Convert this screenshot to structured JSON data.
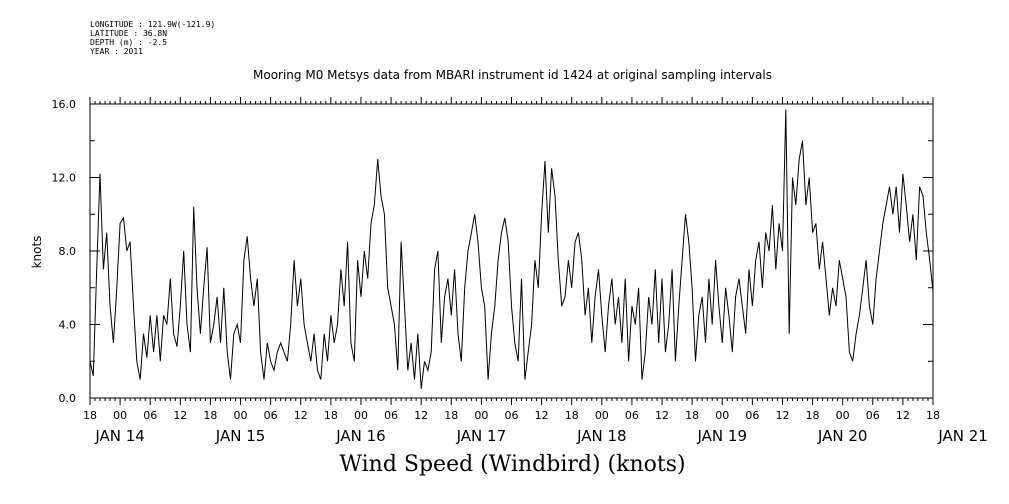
{
  "meta": {
    "longitude": "LONGITUDE : 121.9W(-121.9)",
    "latitude": "LATITUDE : 36.8N",
    "depth": "DEPTH (m) : -2.5",
    "year": "YEAR : 2011"
  },
  "chart_data": {
    "type": "line",
    "title": "Mooring M0 Metsys data from MBARI instrument id 1424 at original sampling intervals",
    "xlabel": "Wind Speed (Windbird) (knots)",
    "ylabel": "knots",
    "ylim": [
      0,
      16
    ],
    "xlim_hours": [
      0,
      168
    ],
    "yticks": [
      "0.0",
      "4.0",
      "8.0",
      "12.0",
      "16.0"
    ],
    "hour_ticks": [
      "18",
      "00",
      "06",
      "12",
      "18",
      "00",
      "06",
      "12",
      "18",
      "00",
      "06",
      "12",
      "18",
      "00",
      "06",
      "12",
      "18",
      "00",
      "06",
      "12",
      "18",
      "00",
      "06",
      "12",
      "18",
      "00",
      "06",
      "12",
      "18"
    ],
    "day_labels": [
      "JAN 14",
      "JAN 15",
      "JAN 16",
      "JAN 17",
      "JAN 18",
      "JAN 19",
      "JAN 20",
      "JAN 21"
    ],
    "grid": false,
    "series": [
      {
        "values": [
          2.0,
          1.2,
          7.0,
          12.2,
          7.0,
          9.0,
          5.0,
          3.0,
          6.0,
          9.5,
          9.8,
          8.0,
          8.5,
          5.0,
          2.0,
          1.0,
          3.5,
          2.2,
          4.5,
          2.5,
          4.5,
          2.0,
          4.5,
          4.0,
          6.5,
          3.5,
          2.8,
          5.0,
          8.0,
          4.0,
          2.5,
          10.4,
          6.0,
          3.5,
          6.0,
          8.2,
          3.0,
          4.0,
          5.5,
          3.0,
          6.0,
          2.5,
          1.0,
          3.5,
          4.0,
          3.0,
          7.5,
          8.8,
          6.5,
          5.0,
          6.5,
          2.5,
          1.0,
          3.0,
          2.0,
          1.5,
          2.5,
          3.0,
          2.5,
          2.0,
          4.0,
          7.5,
          5.0,
          6.5,
          4.0,
          3.0,
          2.0,
          3.5,
          1.5,
          1.0,
          3.5,
          2.0,
          4.5,
          3.0,
          4.0,
          7.0,
          5.0,
          8.5,
          3.0,
          2.0,
          7.5,
          5.5,
          8.0,
          6.5,
          9.5,
          10.5,
          13.0,
          11.0,
          10.0,
          6.0,
          5.0,
          4.0,
          1.5,
          8.5,
          5.0,
          1.5,
          3.0,
          1.0,
          3.5,
          0.5,
          2.0,
          1.5,
          2.5,
          7.0,
          8.0,
          3.0,
          5.5,
          6.5,
          4.5,
          7.0,
          3.5,
          2.0,
          6.0,
          8.0,
          9.0,
          10.0,
          8.5,
          6.0,
          5.0,
          1.0,
          3.5,
          5.0,
          7.5,
          9.0,
          9.8,
          8.5,
          5.0,
          3.0,
          2.0,
          6.5,
          1.0,
          2.5,
          4.0,
          7.5,
          6.0,
          10.0,
          12.9,
          9.0,
          12.5,
          11.0,
          7.5,
          5.0,
          5.5,
          7.5,
          6.0,
          8.5,
          9.0,
          7.5,
          4.5,
          6.0,
          3.0,
          5.5,
          7.0,
          4.5,
          2.5,
          5.0,
          6.5,
          4.0,
          5.5,
          3.0,
          6.5,
          2.0,
          5.0,
          4.0,
          6.0,
          1.0,
          2.5,
          5.5,
          4.0,
          7.0,
          3.0,
          6.5,
          2.5,
          4.0,
          7.0,
          2.0,
          5.0,
          7.5,
          10.0,
          8.5,
          6.0,
          2.0,
          4.5,
          5.5,
          3.0,
          6.5,
          4.0,
          7.5,
          5.0,
          3.0,
          6.0,
          4.5,
          2.5,
          5.5,
          6.5,
          5.0,
          3.5,
          7.0,
          5.0,
          7.5,
          8.5,
          6.0,
          9.0,
          8.0,
          10.5,
          7.0,
          9.5,
          8.0,
          15.7,
          3.5,
          12.0,
          10.5,
          13.0,
          14.0,
          10.5,
          12.0,
          9.0,
          9.5,
          7.0,
          8.5,
          6.5,
          4.5,
          6.0,
          5.0,
          7.5,
          6.5,
          5.5,
          2.5,
          2.0,
          3.5,
          4.5,
          6.0,
          7.5,
          5.0,
          4.0,
          6.5,
          8.0,
          9.5,
          10.5,
          11.5,
          10.0,
          11.5,
          9.0,
          12.2,
          10.5,
          8.5,
          10.0,
          7.5,
          11.5,
          11.0,
          9.0,
          7.5,
          5.8
        ]
      }
    ]
  }
}
